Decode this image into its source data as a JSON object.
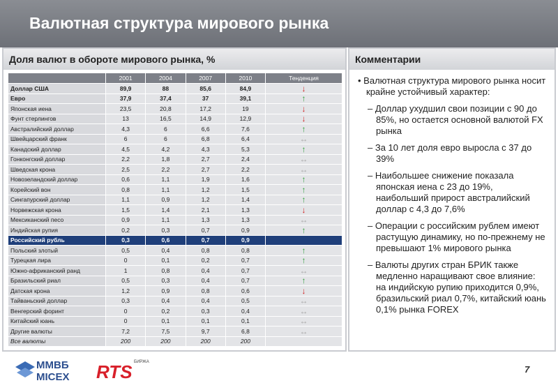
{
  "header": {
    "title": "Валютная структура мирового рынка"
  },
  "table": {
    "title": "Доля валют в обороте мирового рынка, %",
    "columns": [
      "2001",
      "2004",
      "2007",
      "2010",
      "Тенденция"
    ],
    "rows": [
      {
        "name": "Доллар США",
        "values": [
          "89,9",
          "88",
          "85,6",
          "84,9"
        ],
        "trend": "↓",
        "trend_color": "#d02020",
        "bold": true
      },
      {
        "name": "Евро",
        "values": [
          "37,9",
          "37,4",
          "37",
          "39,1"
        ],
        "trend": "↑",
        "trend_color": "#2e9e3a",
        "bold": true
      },
      {
        "name": "Японская иена",
        "values": [
          "23,5",
          "20,8",
          "17,2",
          "19"
        ],
        "trend": "↓",
        "trend_color": "#d02020"
      },
      {
        "name": "Фунт стерлингов",
        "values": [
          "13",
          "16,5",
          "14,9",
          "12,9"
        ],
        "trend": "↓",
        "trend_color": "#d02020"
      },
      {
        "name": "Австралийский доллар",
        "values": [
          "4,3",
          "6",
          "6,6",
          "7,6"
        ],
        "trend": "↑",
        "trend_color": "#2e9e3a"
      },
      {
        "name": "Швейцарский франк",
        "values": [
          "6",
          "6",
          "6,8",
          "6,4"
        ],
        "trend": "↔",
        "trend_color": "#a8a8a8"
      },
      {
        "name": "Канадский доллар",
        "values": [
          "4,5",
          "4,2",
          "4,3",
          "5,3"
        ],
        "trend": "↑",
        "trend_color": "#2e9e3a"
      },
      {
        "name": "Гонконгский доллар",
        "values": [
          "2,2",
          "1,8",
          "2,7",
          "2,4"
        ],
        "trend": "↔",
        "trend_color": "#a8a8a8"
      },
      {
        "name": "Шведская крона",
        "values": [
          "2,5",
          "2,2",
          "2,7",
          "2,2"
        ],
        "trend": "↔",
        "trend_color": "#a8a8a8"
      },
      {
        "name": "Новозеландский доллар",
        "values": [
          "0,6",
          "1,1",
          "1,9",
          "1,6"
        ],
        "trend": "↑",
        "trend_color": "#2e9e3a"
      },
      {
        "name": "Корейский вон",
        "values": [
          "0,8",
          "1,1",
          "1,2",
          "1,5"
        ],
        "trend": "↑",
        "trend_color": "#2e9e3a"
      },
      {
        "name": "Сингапурский доллар",
        "values": [
          "1,1",
          "0,9",
          "1,2",
          "1,4"
        ],
        "trend": "↑",
        "trend_color": "#2e9e3a"
      },
      {
        "name": "Норвежская крона",
        "values": [
          "1,5",
          "1,4",
          "2,1",
          "1,3"
        ],
        "trend": "↓",
        "trend_color": "#d02020"
      },
      {
        "name": "Мексиканский песо",
        "values": [
          "0,9",
          "1,1",
          "1,3",
          "1,3"
        ],
        "trend": "↔",
        "trend_color": "#a8a8a8"
      },
      {
        "name": "Индийская рупия",
        "values": [
          "0,2",
          "0,3",
          "0,7",
          "0,9"
        ],
        "trend": "↑",
        "trend_color": "#2e9e3a"
      },
      {
        "name": "Российский рубль",
        "values": [
          "0,3",
          "0,6",
          "0,7",
          "0,9"
        ],
        "highlight": true,
        "bold": true
      },
      {
        "name": "Польский злотый",
        "values": [
          "0,5",
          "0,4",
          "0,8",
          "0,8"
        ],
        "trend": "↑",
        "trend_color": "#2e9e3a"
      },
      {
        "name": "Турецкая лира",
        "values": [
          "0",
          "0,1",
          "0,2",
          "0,7"
        ],
        "trend": "↑",
        "trend_color": "#2e9e3a"
      },
      {
        "name": "Южно-африканский ранд",
        "values": [
          "1",
          "0,8",
          "0,4",
          "0,7"
        ],
        "trend": "↔",
        "trend_color": "#a8a8a8"
      },
      {
        "name": "Бразильский риал",
        "values": [
          "0,5",
          "0,3",
          "0,4",
          "0,7"
        ],
        "trend": "↑",
        "trend_color": "#2e9e3a"
      },
      {
        "name": "Датская крона",
        "values": [
          "1,2",
          "0,9",
          "0,8",
          "0,6"
        ],
        "trend": "↓",
        "trend_color": "#d02020"
      },
      {
        "name": "Тайваньский доллар",
        "values": [
          "0,3",
          "0,4",
          "0,4",
          "0,5"
        ],
        "trend": "↔",
        "trend_color": "#a8a8a8"
      },
      {
        "name": "Венгерский форинт",
        "values": [
          "0",
          "0,2",
          "0,3",
          "0,4"
        ],
        "trend": "↔",
        "trend_color": "#a8a8a8"
      },
      {
        "name": "Китайский юань",
        "values": [
          "0",
          "0,1",
          "0,1",
          "0,1"
        ],
        "trend": "↔",
        "trend_color": "#a8a8a8"
      },
      {
        "name": "Другие валюты",
        "values": [
          "7,2",
          "7,5",
          "9,7",
          "6,8"
        ],
        "trend": "↔",
        "trend_color": "#a8a8a8"
      },
      {
        "name": "Все валюты",
        "values": [
          "200",
          "200",
          "200",
          "200"
        ],
        "italic": true
      }
    ]
  },
  "comments": {
    "title": "Комментарии",
    "bullet": "Валютная структура мирового рынка носит крайне устойчивый характер:",
    "items": [
      "Доллар ухудшил свои позиции с 90 до 85%, но остается основной валютой  FX рынка",
      "За 10 лет доля евро выросла с 37 до 39%",
      "Наибольшее снижение показала японская иена с 23 до 19%, наибольший прирост австралийский доллар с 4,3 до 7,6%",
      "Операции с российским рублем имеют растущую динамику, но по-прежнему не превышают 1% мирового рынка",
      "Валюты других стран БРИК также медленно наращивают свое влияние: на индийскую рупию приходится 0,9%, бразильский риал 0,7%, китайский юань 0,1% рынка FOREX"
    ]
  },
  "footer": {
    "logo1_top": "ММВБ",
    "logo1_bottom": "MICEX",
    "logo2": "RTS",
    "logo2_sub": "БИРЖА",
    "page": "7"
  }
}
